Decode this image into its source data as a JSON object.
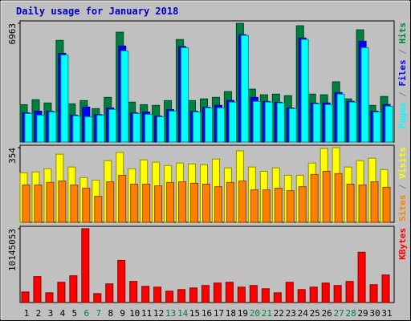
{
  "chart_data": [
    {
      "type": "bar",
      "title": "Daily usage for January 2018",
      "ylim": [
        0,
        6963
      ],
      "yticks": [
        6963
      ],
      "legend_separator": " / ",
      "series": [
        {
          "name": "Hits",
          "color": "#008040",
          "values": [
            2190,
            2480,
            2290,
            5960,
            2240,
            2430,
            1960,
            2620,
            6440,
            2340,
            2190,
            2150,
            2430,
            6010,
            2430,
            2530,
            2620,
            2960,
            6960,
            3100,
            2770,
            2810,
            2720,
            6820,
            2810,
            2770,
            3530,
            2530,
            6580,
            2150,
            2670
          ]
        },
        {
          "name": "Files",
          "color": "#0000ff",
          "values": [
            1710,
            1810,
            1800,
            5200,
            1570,
            2050,
            1610,
            2000,
            5630,
            1710,
            1760,
            1520,
            1900,
            5600,
            1800,
            2040,
            2150,
            2440,
            6300,
            2620,
            2380,
            2330,
            2000,
            6100,
            2280,
            2290,
            2900,
            2390,
            5910,
            1810,
            2200
          ]
        },
        {
          "name": "Pages",
          "color": "#00ffff",
          "values": [
            1670,
            1570,
            1760,
            5100,
            1530,
            1480,
            1570,
            1910,
            5340,
            1670,
            1620,
            1480,
            1810,
            5530,
            1760,
            2000,
            2000,
            2340,
            6250,
            2380,
            2340,
            2290,
            1960,
            6010,
            2240,
            2190,
            2810,
            2340,
            5530,
            1760,
            2100
          ]
        }
      ]
    },
    {
      "type": "bar",
      "ylim": [
        0,
        354
      ],
      "yticks": [
        354
      ],
      "legend_separator": " / ",
      "series": [
        {
          "name": "Visits",
          "color": "#ffff00",
          "values": [
            235,
            239,
            254,
            323,
            262,
            212,
            200,
            292,
            331,
            254,
            296,
            285,
            269,
            281,
            277,
            273,
            300,
            258,
            339,
            262,
            242,
            258,
            223,
            223,
            281,
            350,
            354,
            262,
            292,
            304,
            250
          ]
        },
        {
          "name": "Sites",
          "color": "#ff8000",
          "values": [
            177,
            177,
            189,
            196,
            177,
            162,
            123,
            192,
            223,
            181,
            181,
            173,
            189,
            192,
            185,
            181,
            169,
            189,
            196,
            154,
            154,
            162,
            150,
            169,
            227,
            242,
            231,
            181,
            177,
            192,
            166
          ]
        }
      ]
    },
    {
      "type": "bar",
      "ylim": [
        0,
        10145053
      ],
      "yticks": [
        10145053
      ],
      "categories": [
        "1",
        "2",
        "3",
        "4",
        "5",
        "6",
        "7",
        "8",
        "9",
        "10",
        "11",
        "12",
        "13",
        "14",
        "15",
        "16",
        "17",
        "18",
        "19",
        "20",
        "21",
        "22",
        "23",
        "24",
        "25",
        "26",
        "27",
        "28",
        "29",
        "30",
        "31"
      ],
      "category_colors": [
        "#000000",
        "#000000",
        "#000000",
        "#000000",
        "#000000",
        "#008040",
        "#008040",
        "#000000",
        "#000000",
        "#000000",
        "#000000",
        "#000000",
        "#008040",
        "#008040",
        "#000000",
        "#000000",
        "#000000",
        "#000000",
        "#000000",
        "#008040",
        "#008040",
        "#000000",
        "#000000",
        "#000000",
        "#000000",
        "#000000",
        "#008040",
        "#008040",
        "#000000",
        "#000000",
        "#000000"
      ],
      "series": [
        {
          "name": "KBytes",
          "color": "#ff0000",
          "values": [
            1449000,
            3568000,
            1338000,
            2787000,
            3679000,
            10145053,
            1226000,
            2564000,
            5797000,
            2899000,
            2230000,
            2118000,
            1561000,
            1784000,
            2007000,
            2341000,
            2676000,
            2787000,
            2118000,
            2341000,
            1895000,
            1338000,
            2787000,
            1784000,
            2118000,
            2676000,
            2341000,
            2899000,
            6912000,
            2453000,
            3790000
          ]
        }
      ]
    }
  ]
}
